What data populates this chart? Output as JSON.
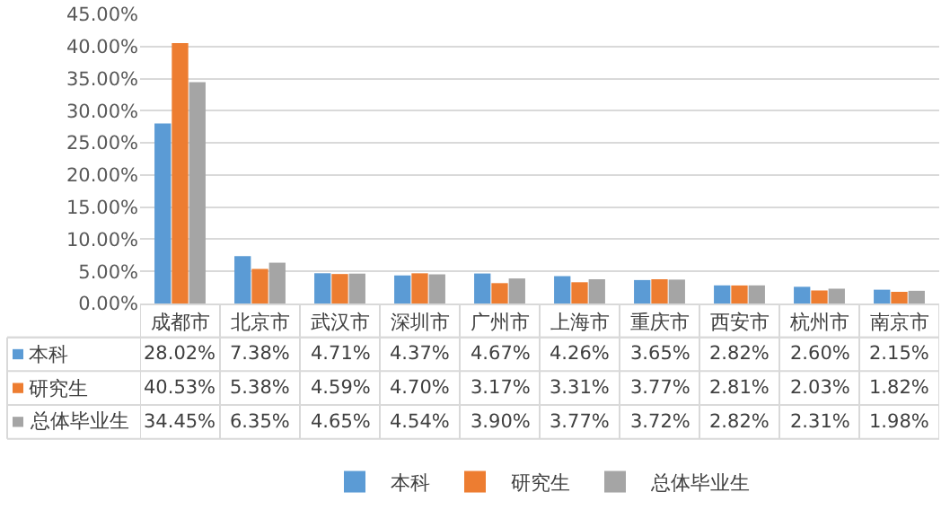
{
  "chart_data": {
    "type": "bar",
    "categories": [
      "成都市",
      "北京市",
      "武汉市",
      "深圳市",
      "广州市",
      "上海市",
      "重庆市",
      "西安市",
      "杭州市",
      "南京市"
    ],
    "series": [
      {
        "name": "本科",
        "color": "#5b9bd5",
        "values": [
          28.02,
          7.38,
          4.71,
          4.37,
          4.67,
          4.26,
          3.65,
          2.82,
          2.6,
          2.15
        ],
        "value_labels": [
          "28.02%",
          "7.38%",
          "4.71%",
          "4.37%",
          "4.67%",
          "4.26%",
          "3.65%",
          "2.82%",
          "2.60%",
          "2.15%"
        ]
      },
      {
        "name": "研究生",
        "color": "#ed7d31",
        "values": [
          40.53,
          5.38,
          4.59,
          4.7,
          3.17,
          3.31,
          3.77,
          2.81,
          2.03,
          1.82
        ],
        "value_labels": [
          "40.53%",
          "5.38%",
          "4.59%",
          "4.70%",
          "3.17%",
          "3.31%",
          "3.77%",
          "2.81%",
          "2.03%",
          "1.82%"
        ]
      },
      {
        "name": "总体毕业生",
        "color": "#a5a5a5",
        "values": [
          34.45,
          6.35,
          4.65,
          4.54,
          3.9,
          3.77,
          3.72,
          2.82,
          2.31,
          1.98
        ],
        "value_labels": [
          "34.45%",
          "6.35%",
          "4.65%",
          "4.54%",
          "3.90%",
          "3.77%",
          "3.72%",
          "2.82%",
          "2.31%",
          "1.98%"
        ]
      }
    ],
    "ylim": [
      0,
      45
    ],
    "yticks": [
      {
        "value": 0,
        "label": "0.00%"
      },
      {
        "value": 5,
        "label": "5.00%"
      },
      {
        "value": 10,
        "label": "10.00%"
      },
      {
        "value": 15,
        "label": "15.00%"
      },
      {
        "value": 20,
        "label": "20.00%"
      },
      {
        "value": 25,
        "label": "25.00%"
      },
      {
        "value": 30,
        "label": "30.00%"
      },
      {
        "value": 35,
        "label": "35.00%"
      },
      {
        "value": 40,
        "label": "40.00%"
      },
      {
        "value": 45,
        "label": "45.00%"
      }
    ],
    "grid": "y",
    "legend": "bottom"
  }
}
